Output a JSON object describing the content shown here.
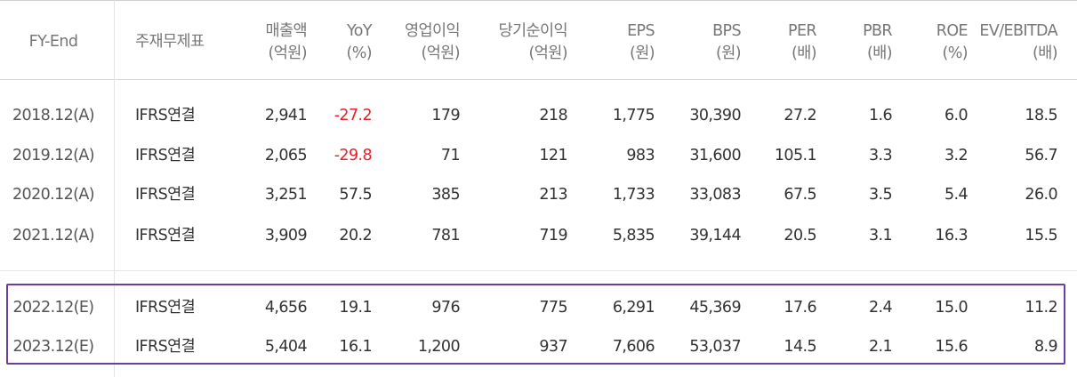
{
  "table": {
    "headers": [
      {
        "line1": "FY-End",
        "line2": ""
      },
      {
        "line1": "주재무제표",
        "line2": ""
      },
      {
        "line1": "매출액",
        "line2": "(억원)"
      },
      {
        "line1": "YoY",
        "line2": "(%)"
      },
      {
        "line1": "영업이익",
        "line2": "(억원)"
      },
      {
        "line1": "당기순이익",
        "line2": "(억원)"
      },
      {
        "line1": "EPS",
        "line2": "(원)"
      },
      {
        "line1": "BPS",
        "line2": "(원)"
      },
      {
        "line1": "PER",
        "line2": "(배)"
      },
      {
        "line1": "PBR",
        "line2": "(배)"
      },
      {
        "line1": "ROE",
        "line2": "(%)"
      },
      {
        "line1": "EV/EBITDA",
        "line2": "(배)"
      }
    ],
    "rows": [
      [
        "2018.12(A)",
        "IFRS연결",
        "2,941",
        "-27.2",
        "179",
        "218",
        "1,775",
        "30,390",
        "27.2",
        "1.6",
        "6.0",
        "18.5"
      ],
      [
        "2019.12(A)",
        "IFRS연결",
        "2,065",
        "-29.8",
        "71",
        "121",
        "983",
        "31,600",
        "105.1",
        "3.3",
        "3.2",
        "56.7"
      ],
      [
        "2020.12(A)",
        "IFRS연결",
        "3,251",
        "57.5",
        "385",
        "213",
        "1,733",
        "33,083",
        "67.5",
        "3.5",
        "5.4",
        "26.0"
      ],
      [
        "2021.12(A)",
        "IFRS연결",
        "3,909",
        "20.2",
        "781",
        "719",
        "5,835",
        "39,144",
        "20.5",
        "3.1",
        "16.3",
        "15.5"
      ],
      [
        "2022.12(E)",
        "IFRS연결",
        "4,656",
        "19.1",
        "976",
        "775",
        "6,291",
        "45,369",
        "17.6",
        "2.4",
        "15.0",
        "11.2"
      ],
      [
        "2023.12(E)",
        "IFRS연결",
        "5,404",
        "16.1",
        "1,200",
        "937",
        "7,606",
        "53,037",
        "14.5",
        "2.1",
        "15.6",
        "8.9"
      ]
    ]
  },
  "colors": {
    "negative": "#e8202a",
    "highlight_border": "#6b3fa0",
    "text": "#333333",
    "header_text": "#777777"
  }
}
